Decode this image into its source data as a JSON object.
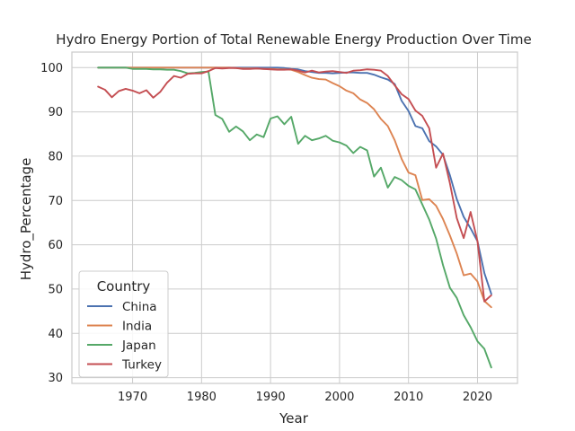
{
  "chart_data": {
    "type": "line",
    "title": "Hydro Energy Portion of Total Renewable Energy Production Over Time",
    "xlabel": "Year",
    "ylabel": "Hydro_Percentage",
    "xlim": [
      1961.2,
      2025.8
    ],
    "ylim": [
      28.7,
      103.5
    ],
    "xticks": [
      1970,
      1980,
      1990,
      2000,
      2010,
      2020
    ],
    "yticks": [
      30,
      40,
      50,
      60,
      70,
      80,
      90,
      100
    ],
    "grid": true,
    "legend": {
      "title": "Country",
      "placement": "lower-left"
    },
    "series": [
      {
        "name": "China",
        "color": "#4c72b0",
        "x": [
          1965,
          1966,
          1967,
          1968,
          1969,
          1970,
          1971,
          1972,
          1973,
          1974,
          1975,
          1976,
          1977,
          1978,
          1979,
          1980,
          1981,
          1982,
          1983,
          1984,
          1985,
          1986,
          1987,
          1988,
          1989,
          1990,
          1991,
          1992,
          1993,
          1994,
          1995,
          1996,
          1997,
          1998,
          1999,
          2000,
          2001,
          2002,
          2003,
          2004,
          2005,
          2006,
          2007,
          2008,
          2009,
          2010,
          2011,
          2012,
          2013,
          2014,
          2015,
          2016,
          2017,
          2018,
          2019,
          2020,
          2021,
          2022
        ],
        "values": [
          100,
          100,
          100,
          100,
          100,
          100,
          100,
          100,
          100,
          100,
          100,
          100,
          100,
          100,
          100,
          100,
          100,
          100,
          100,
          100,
          100,
          100,
          100,
          100,
          100,
          100,
          100,
          99.9,
          99.7,
          99.6,
          99.2,
          99.0,
          98.8,
          98.8,
          98.7,
          98.8,
          98.9,
          98.9,
          98.8,
          98.8,
          98.4,
          97.8,
          97.3,
          96.3,
          92.5,
          90.2,
          86.8,
          86.3,
          83.4,
          82.2,
          80.3,
          75.7,
          70.3,
          66.3,
          63.7,
          60.8,
          53.6,
          48.9
        ]
      },
      {
        "name": "India",
        "color": "#dd8452",
        "x": [
          1965,
          1966,
          1967,
          1968,
          1969,
          1970,
          1971,
          1972,
          1973,
          1974,
          1975,
          1976,
          1977,
          1978,
          1979,
          1980,
          1981,
          1982,
          1983,
          1984,
          1985,
          1986,
          1987,
          1988,
          1989,
          1990,
          1991,
          1992,
          1993,
          1994,
          1995,
          1996,
          1997,
          1998,
          1999,
          2000,
          2001,
          2002,
          2003,
          2004,
          2005,
          2006,
          2007,
          2008,
          2009,
          2010,
          2011,
          2012,
          2013,
          2014,
          2015,
          2016,
          2017,
          2018,
          2019,
          2020,
          2021,
          2022
        ],
        "values": [
          100,
          100,
          100,
          100,
          100,
          100,
          100,
          100,
          100,
          100,
          100,
          100,
          100,
          100,
          100,
          100,
          100,
          100,
          100,
          100,
          99.9,
          99.8,
          99.8,
          99.8,
          99.7,
          99.7,
          99.6,
          99.6,
          99.5,
          99.0,
          98.3,
          97.7,
          97.4,
          97.3,
          96.5,
          95.8,
          94.8,
          94.2,
          92.8,
          92.0,
          90.6,
          88.4,
          86.8,
          83.6,
          79.4,
          76.3,
          75.7,
          70.1,
          70.3,
          68.8,
          65.8,
          62.1,
          58.0,
          53.1,
          53.5,
          51.7,
          47.3,
          45.9
        ]
      },
      {
        "name": "Japan",
        "color": "#55a868",
        "x": [
          1965,
          1966,
          1967,
          1968,
          1969,
          1970,
          1971,
          1972,
          1973,
          1974,
          1975,
          1976,
          1977,
          1978,
          1979,
          1980,
          1981,
          1982,
          1983,
          1984,
          1985,
          1986,
          1987,
          1988,
          1989,
          1990,
          1991,
          1992,
          1993,
          1994,
          1995,
          1996,
          1997,
          1998,
          1999,
          2000,
          2001,
          2002,
          2003,
          2004,
          2005,
          2006,
          2007,
          2008,
          2009,
          2010,
          2011,
          2012,
          2013,
          2014,
          2015,
          2016,
          2017,
          2018,
          2019,
          2020,
          2021,
          2022
        ],
        "values": [
          100,
          100,
          100,
          100,
          100,
          99.7,
          99.7,
          99.7,
          99.6,
          99.6,
          99.5,
          99.5,
          99.2,
          98.7,
          98.8,
          99.0,
          99.1,
          89.3,
          88.4,
          85.5,
          86.7,
          85.6,
          83.6,
          84.9,
          84.3,
          88.5,
          89.0,
          87.2,
          88.9,
          82.8,
          84.6,
          83.6,
          84.0,
          84.6,
          83.5,
          83.1,
          82.4,
          80.7,
          82.1,
          81.3,
          75.4,
          77.4,
          72.9,
          75.3,
          74.6,
          73.3,
          72.5,
          69.1,
          65.7,
          61.4,
          55.4,
          50.3,
          48.0,
          44.1,
          41.4,
          38.2,
          36.5,
          32.3
        ]
      },
      {
        "name": "Turkey",
        "color": "#c44e52",
        "x": [
          1965,
          1966,
          1967,
          1968,
          1969,
          1970,
          1971,
          1972,
          1973,
          1974,
          1975,
          1976,
          1977,
          1978,
          1979,
          1980,
          1981,
          1982,
          1983,
          1984,
          1985,
          1986,
          1987,
          1988,
          1989,
          1990,
          1991,
          1992,
          1993,
          1994,
          1995,
          1996,
          1997,
          1998,
          1999,
          2000,
          2001,
          2002,
          2003,
          2004,
          2005,
          2006,
          2007,
          2008,
          2009,
          2010,
          2011,
          2012,
          2013,
          2014,
          2015,
          2016,
          2017,
          2018,
          2019,
          2020,
          2021,
          2022
        ],
        "values": [
          95.7,
          95.0,
          93.3,
          94.7,
          95.2,
          94.8,
          94.2,
          94.9,
          93.2,
          94.5,
          96.6,
          98.1,
          97.7,
          98.6,
          98.7,
          98.7,
          99.2,
          99.9,
          99.8,
          99.9,
          99.9,
          99.7,
          99.7,
          99.8,
          99.7,
          99.6,
          99.5,
          99.5,
          99.6,
          99.3,
          98.9,
          99.3,
          98.9,
          99.1,
          99.2,
          99.0,
          98.8,
          99.3,
          99.4,
          99.6,
          99.5,
          99.3,
          98.1,
          96.0,
          94.0,
          92.9,
          90.3,
          89.1,
          86.3,
          77.4,
          80.6,
          73.9,
          66.0,
          61.5,
          67.4,
          60.8,
          47.2,
          48.6
        ]
      }
    ]
  }
}
